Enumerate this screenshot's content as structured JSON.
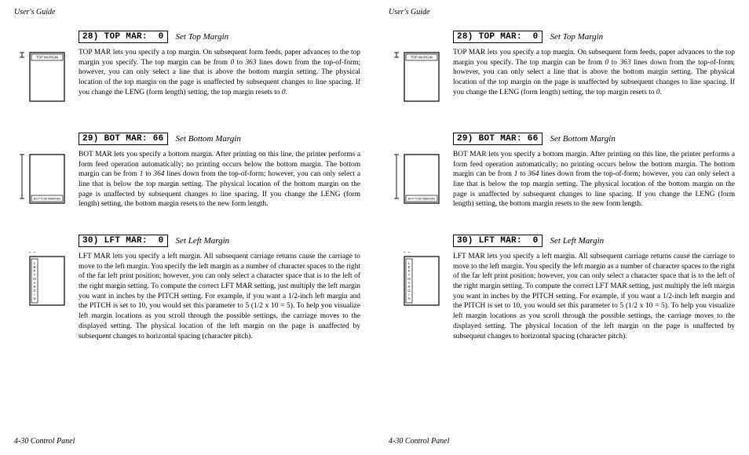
{
  "header": "User's Guide",
  "footer": "4-30 Control Panel",
  "sections": [
    {
      "lcd": "28) TOP MAR:  0",
      "subtitle": "Set Top Margin",
      "body": "TOP MAR lets you specify a top margin.  On subsequent form feeds, paper advances to the top margin you specify.  The top margin can be from 0 to 363 lines down from the top-of-form; however, you can only select a line that is above the bottom margin setting.  The physical location of the top margin on the page is unaffected by subsequent changes to line spacing.  If you change the LENG (form length) setting, the top margin resets to 0.",
      "diagram": "top"
    },
    {
      "lcd": "29) BOT MAR: 66",
      "subtitle": "Set Bottom Margin",
      "body": "BOT MAR lets you specify a bottom margin.  After printing on this line, the printer performs a form feed operation automatically; no printing occurs below the bottom margin.  The bottom margin can be from 1 to 364 lines down from the top-of-form; however, you can only select a line that is below the top margin setting.  The physical location of the bottom margin on the page is unaffected by subsequent changes to line spacing.  If you change the LENG (form length) setting, the bottom margin resets to the new form length.",
      "diagram": "bottom"
    },
    {
      "lcd": "30) LFT MAR:  0",
      "subtitle": "Set Left Margin",
      "body": "LFT MAR lets you specify a left margin.  All subsequent carriage returns cause the carriage to move to the left margin.  You specify the left margin as a number of character spaces to the right of the far left print position; however, you can only select a character space that is to the left of the right margin setting.  To compute the correct LFT MAR setting, just multiply the left margin you want in inches by the PITCH setting.  For example, if you want a 1/2-inch left margin and the PITCH is set to 10, you would set this parameter to 5 (1/2 x 10 = 5).  To help you visualize left margin locations as you scroll through the possible settings, the carriage moves to the displayed setting.  The physical location of the left margin on the page is unaffected by subsequent changes to horizontal spacing (character pitch).",
      "diagram": "left"
    }
  ],
  "labels": {
    "top": "TOP MARGIN",
    "bottom": "BOTTOM MARGIN",
    "left": "LEFT MARGIN"
  }
}
